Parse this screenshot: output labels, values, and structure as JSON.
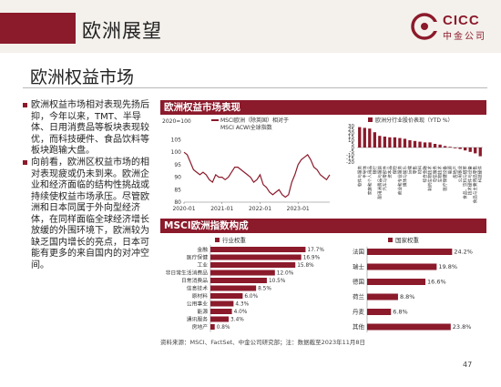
{
  "header": {
    "title": "欧洲展望",
    "logo_text": "CICC",
    "logo_subtext": "中金公司"
  },
  "subtitle": "欧洲权益市场",
  "bullets": [
    "欧洲权益市场相对表现先扬后抑，今年以来，TMT、半导体、日用消费品等板块表现较优，而科技硬件、食品饮料等板块跑输大盘。",
    "向前看，欧洲区权益市场的相对表现疲或仍未到来。欧洲企业和经济面临的结构性挑战或持续使权益市场承压。尽管欧洲和日本同属于外向型经济体，在同样面临全球经济增长放缓的外围环境下，欧洲较为缺乏国内增长的亮点，日本可能有更多的来自国内的对冲空间。"
  ],
  "panels": {
    "performance": "欧洲权益市场表现",
    "msci": "MSCI欧洲指数构成"
  },
  "colors": {
    "brand": "#8b1a2b",
    "bar": "#8b1a2b",
    "header_bg": "#f4f1ec"
  },
  "chart_data": [
    {
      "type": "line",
      "ylabel": "2020=100",
      "series_label": "MSCI欧洲（除英国）相对于MSCI ACWI全球指数",
      "x_ticks": [
        "2020-01",
        "2021-01",
        "2022-01",
        "2023-01"
      ],
      "y_ticks": [
        80,
        85,
        90,
        95,
        100,
        105
      ],
      "ylim": [
        80,
        107
      ],
      "x_range": [
        "2020-01",
        "2023-11"
      ],
      "x": [
        "2020-01",
        "2020-02",
        "2020-03",
        "2020-04",
        "2020-05",
        "2020-06",
        "2020-07",
        "2020-08",
        "2020-09",
        "2020-10",
        "2020-11",
        "2020-12",
        "2021-01",
        "2021-02",
        "2021-03",
        "2021-04",
        "2021-05",
        "2021-06",
        "2021-07",
        "2021-08",
        "2021-09",
        "2021-10",
        "2021-11",
        "2021-12",
        "2022-01",
        "2022-02",
        "2022-03",
        "2022-04",
        "2022-05",
        "2022-06",
        "2022-07",
        "2022-08",
        "2022-09",
        "2022-10",
        "2022-11",
        "2022-12",
        "2023-01",
        "2023-02",
        "2023-03",
        "2023-04",
        "2023-05",
        "2023-06",
        "2023-07",
        "2023-08",
        "2023-09",
        "2023-10",
        "2023-11"
      ],
      "values": [
        100,
        99,
        96,
        93,
        92,
        91,
        92,
        91,
        89,
        88,
        91,
        90,
        90,
        89,
        90,
        92,
        94,
        94,
        93,
        92,
        91,
        90,
        88,
        89,
        91,
        87,
        86,
        84,
        83,
        84,
        85,
        83,
        82,
        83,
        88,
        91,
        95,
        97,
        98,
        99,
        97,
        94,
        93,
        91,
        90,
        89,
        91
      ]
    },
    {
      "type": "bar",
      "legend": "欧洲分行业股价表现（YTD %）",
      "y_ticks": [
        -20,
        -15,
        -10,
        -5,
        0,
        5,
        10,
        15,
        20,
        25,
        30
      ],
      "ylim": [
        -20,
        30
      ],
      "categories": [
        "软件与服务",
        "半导体",
        "家庭和个人用品",
        "银行",
        "耐用消费品与服装",
        "汽车与零部件",
        "资本品",
        "保险",
        "商业和专业服务",
        "媒体与娱乐",
        "运输",
        "零售",
        "材料",
        "综合金融",
        "制药生物技术",
        "电信服务",
        "生物技术",
        "医疗保健设备",
        "能源",
        "房地产",
        "公用事业",
        "食品、饮料与烟草",
        "技术硬件与设备",
        "食品与主要用品零售",
        "科技硬件"
      ],
      "values": [
        28,
        27,
        26,
        21,
        16,
        15,
        14,
        14,
        13,
        12,
        10,
        9,
        8,
        7,
        7,
        5,
        4,
        2,
        1,
        -1,
        -2,
        -4,
        -6,
        -8,
        -12
      ]
    },
    {
      "type": "bar",
      "legend": "行业权重",
      "categories": [
        "金融",
        "医疗保健",
        "工业",
        "非日常生活消费品",
        "日常消费品",
        "信息技术",
        "原材料",
        "公用事业",
        "能源",
        "通讯服务",
        "房地产"
      ],
      "values": [
        17.7,
        16.9,
        15.8,
        12.0,
        10.5,
        8.5,
        6.0,
        4.3,
        4.0,
        3.4,
        0.8
      ],
      "labels": [
        "17.7%",
        "16.9%",
        "15.8%",
        "12.0%",
        "10.5%",
        "8.5%",
        "6.0%",
        "4.3%",
        "4.0%",
        "3.4%",
        "0.8%"
      ],
      "xlim": [
        0,
        20
      ]
    },
    {
      "type": "bar",
      "legend": "国家权重",
      "categories": [
        "法国",
        "瑞士",
        "德国",
        "荷兰",
        "丹麦",
        "其他"
      ],
      "values": [
        24.2,
        19.8,
        16.6,
        8.8,
        6.8,
        23.8
      ],
      "labels": [
        "24.2%",
        "19.8%",
        "16.6%",
        "8.8%",
        "6.8%",
        "23.8%"
      ],
      "xlim": [
        0,
        28
      ]
    }
  ],
  "source": "资料来源：MSCI、FactSet、中金公司研究部；注：数据截至2023年11月8日",
  "page_number": "47"
}
